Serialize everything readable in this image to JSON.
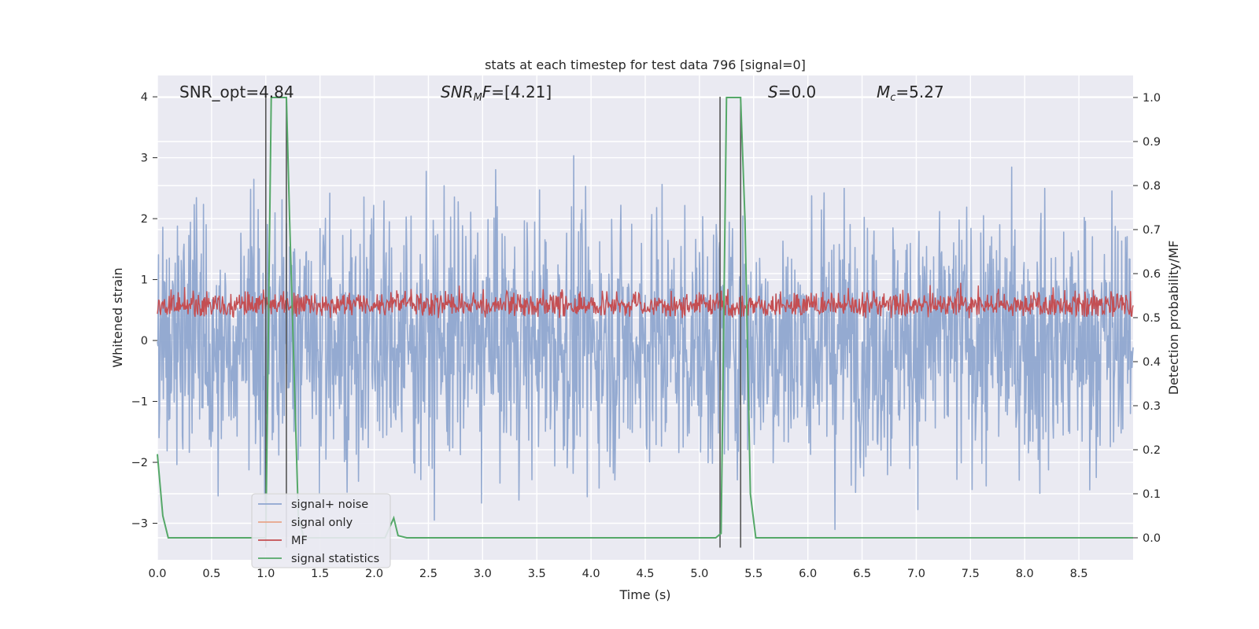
{
  "chart_data": {
    "type": "line",
    "title": "stats at each timestep for test data 796 [signal=0]",
    "xlabel": "Time (s)",
    "ylabel_left": "Whitened strain",
    "ylabel_right": "Detection probability/MF",
    "xlim": [
      0.0,
      9.0
    ],
    "ylim_left": [
      -3.6,
      4.35
    ],
    "ylim_right": [
      -0.05,
      1.05
    ],
    "x_ticks": [
      "0.0",
      "0.5",
      "1.0",
      "1.5",
      "2.0",
      "2.5",
      "3.0",
      "3.5",
      "4.0",
      "4.5",
      "5.0",
      "5.5",
      "6.0",
      "6.5",
      "7.0",
      "7.5",
      "8.0",
      "8.5"
    ],
    "y_ticks_left": [
      "4",
      "3",
      "2",
      "1",
      "0",
      "−1",
      "−2",
      "−3"
    ],
    "y_ticks_right": [
      "1.0",
      "0.9",
      "0.8",
      "0.7",
      "0.6",
      "0.5",
      "0.4",
      "0.3",
      "0.2",
      "0.1",
      "0.0"
    ],
    "grid": true,
    "legend_position": "lower-left",
    "annotations": {
      "snr_opt": "SNR_opt=4.84",
      "snr_mf_sym": "SNR",
      "snr_mf_sub": "M",
      "snr_mf_sym2": "F",
      "snr_mf_value": "=[4.21]",
      "s_sym": "S",
      "s_value": "=0.0",
      "mc_sym": "M",
      "mc_sub": "c",
      "mc_value": "=5.27"
    },
    "vertical_lines_s": [
      1.0,
      1.19,
      5.19,
      5.38
    ],
    "series": [
      {
        "name": "signal+ noise",
        "color": "#8fa6cf",
        "axis": "left",
        "description": "whitened noise, amplitude ~ +/-2.5, peaks up to ~3.4"
      },
      {
        "name": "signal only",
        "color": "#e8a58a",
        "axis": "left",
        "values": []
      },
      {
        "name": "MF",
        "color": "#c44e52",
        "axis": "right",
        "description": "matched-filter statistic ~0.47-0.61"
      },
      {
        "name": "signal statistics",
        "color": "#55a868",
        "axis": "right",
        "x": [
          0.0,
          0.05,
          0.1,
          0.9,
          1.0,
          1.05,
          1.1,
          1.19,
          1.22,
          1.3,
          1.35,
          1.4,
          2.1,
          2.18,
          2.22,
          2.3,
          5.1,
          5.15,
          5.2,
          5.25,
          5.38,
          5.42,
          5.47,
          5.52,
          9.0
        ],
        "y": [
          0.19,
          0.05,
          0.0,
          0.0,
          0.0,
          1.0,
          1.0,
          1.0,
          0.72,
          0.05,
          0.0,
          0.0,
          0.0,
          0.045,
          0.005,
          0.0,
          0.0,
          0.0,
          0.01,
          1.0,
          1.0,
          0.72,
          0.1,
          0.0,
          0.0
        ]
      }
    ]
  }
}
